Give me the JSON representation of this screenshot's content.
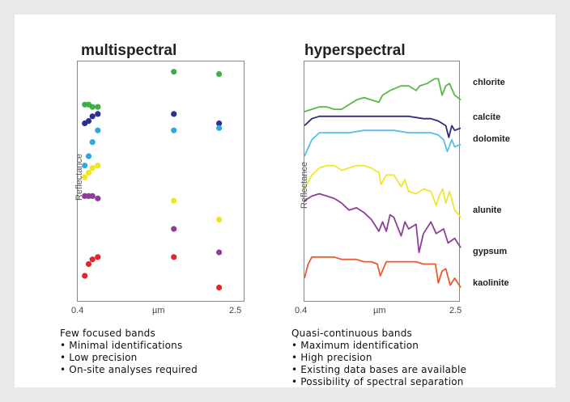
{
  "multispectral": {
    "title": "multispectral",
    "ylabel": "Reflectance",
    "x_tick_left": "0.4",
    "x_tick_mid": "µm",
    "x_tick_right": "2.5",
    "heading": "Few focused bands",
    "bullets": [
      "• Minimal identifications",
      "• Low precision",
      "• On-site analyses required"
    ]
  },
  "hyperspectral": {
    "title": "hyperspectral",
    "ylabel": "Reflectance",
    "x_tick_left": "0.4",
    "x_tick_mid": "µm",
    "x_tick_right": "2.5",
    "heading": "Quasi-continuous bands",
    "bullets": [
      "• Maximum identification",
      "• High precision",
      "• Existing data bases are available",
      "• Possibility of spectral separation"
    ]
  },
  "chart_data": [
    {
      "type": "scatter",
      "title": "multispectral",
      "xlabel": "µm",
      "ylabel": "Reflectance",
      "xlim": [
        0.4,
        2.5
      ],
      "ylim": [
        0,
        1
      ],
      "series": [
        {
          "color": "#3fae49",
          "x": [
            0.45,
            0.5,
            0.55,
            0.62,
            1.61,
            2.2
          ],
          "values": [
            0.83,
            0.83,
            0.82,
            0.82,
            0.97,
            0.96
          ]
        },
        {
          "color": "#2b2f8f",
          "x": [
            0.45,
            0.5,
            0.55,
            0.62,
            1.61,
            2.2
          ],
          "values": [
            0.75,
            0.76,
            0.78,
            0.79,
            0.79,
            0.75
          ]
        },
        {
          "color": "#29abe2",
          "x": [
            0.45,
            0.5,
            0.55,
            0.62,
            1.61,
            2.2
          ],
          "values": [
            0.57,
            0.61,
            0.67,
            0.72,
            0.72,
            0.73
          ]
        },
        {
          "color": "#f2e51a",
          "x": [
            0.45,
            0.5,
            0.55,
            0.62,
            1.61,
            2.2
          ],
          "values": [
            0.52,
            0.54,
            0.56,
            0.57,
            0.42,
            0.34
          ]
        },
        {
          "color": "#8e3c97",
          "x": [
            0.45,
            0.5,
            0.55,
            0.62,
            1.61,
            2.2
          ],
          "values": [
            0.44,
            0.44,
            0.44,
            0.43,
            0.3,
            0.2
          ]
        },
        {
          "color": "#e0262b",
          "x": [
            0.45,
            0.5,
            0.55,
            0.62,
            1.61,
            2.2
          ],
          "values": [
            0.1,
            0.15,
            0.17,
            0.18,
            0.18,
            0.05
          ]
        }
      ],
      "grid": false
    },
    {
      "type": "line",
      "title": "hyperspectral",
      "xlabel": "µm",
      "ylabel": "Reflectance",
      "xlim": [
        0.4,
        2.5
      ],
      "ylim": [
        0,
        1
      ],
      "series": [
        {
          "name": "chlorite",
          "color": "#5bb749",
          "x": [
            0.4,
            0.5,
            0.6,
            0.7,
            0.8,
            0.9,
            1.0,
            1.1,
            1.2,
            1.3,
            1.4,
            1.45,
            1.55,
            1.7,
            1.8,
            1.9,
            1.95,
            2.05,
            2.15,
            2.2,
            2.25,
            2.3,
            2.35,
            2.42,
            2.5
          ],
          "values": [
            0.8,
            0.81,
            0.82,
            0.82,
            0.81,
            0.81,
            0.83,
            0.85,
            0.86,
            0.85,
            0.84,
            0.87,
            0.89,
            0.91,
            0.91,
            0.89,
            0.91,
            0.92,
            0.94,
            0.94,
            0.87,
            0.91,
            0.92,
            0.87,
            0.85
          ]
        },
        {
          "name": "calcite",
          "color": "#2c2e88",
          "x": [
            0.4,
            0.5,
            0.6,
            0.8,
            1.0,
            1.2,
            1.4,
            1.6,
            1.8,
            2.0,
            2.1,
            2.2,
            2.25,
            2.3,
            2.34,
            2.38,
            2.42,
            2.5
          ],
          "values": [
            0.74,
            0.77,
            0.78,
            0.78,
            0.78,
            0.78,
            0.78,
            0.78,
            0.78,
            0.77,
            0.77,
            0.76,
            0.75,
            0.74,
            0.69,
            0.74,
            0.72,
            0.73
          ]
        },
        {
          "name": "dolomite",
          "color": "#59bde8",
          "x": [
            0.4,
            0.5,
            0.6,
            0.8,
            1.0,
            1.2,
            1.4,
            1.6,
            1.8,
            2.0,
            2.1,
            2.2,
            2.27,
            2.32,
            2.38,
            2.42,
            2.5
          ],
          "values": [
            0.61,
            0.68,
            0.71,
            0.71,
            0.71,
            0.72,
            0.72,
            0.72,
            0.71,
            0.71,
            0.71,
            0.7,
            0.68,
            0.63,
            0.68,
            0.65,
            0.66
          ]
        },
        {
          "name": "alunite",
          "color": "#f0e62f",
          "x": [
            0.4,
            0.5,
            0.6,
            0.7,
            0.8,
            0.9,
            1.0,
            1.1,
            1.2,
            1.3,
            1.4,
            1.43,
            1.5,
            1.6,
            1.7,
            1.75,
            1.8,
            1.9,
            2.0,
            2.1,
            2.17,
            2.21,
            2.26,
            2.3,
            2.35,
            2.42,
            2.5
          ],
          "values": [
            0.47,
            0.53,
            0.56,
            0.57,
            0.57,
            0.55,
            0.56,
            0.57,
            0.57,
            0.56,
            0.54,
            0.49,
            0.53,
            0.53,
            0.48,
            0.51,
            0.46,
            0.45,
            0.47,
            0.46,
            0.4,
            0.44,
            0.47,
            0.41,
            0.46,
            0.38,
            0.35
          ]
        },
        {
          "name": "gypsum",
          "color": "#8e3d99",
          "x": [
            0.4,
            0.5,
            0.6,
            0.7,
            0.8,
            0.9,
            1.0,
            1.1,
            1.2,
            1.3,
            1.4,
            1.45,
            1.5,
            1.55,
            1.6,
            1.7,
            1.75,
            1.8,
            1.9,
            1.94,
            2.0,
            2.1,
            2.17,
            2.22,
            2.27,
            2.33,
            2.42,
            2.5
          ],
          "values": [
            0.42,
            0.44,
            0.45,
            0.44,
            0.43,
            0.41,
            0.38,
            0.39,
            0.37,
            0.34,
            0.29,
            0.33,
            0.29,
            0.36,
            0.35,
            0.27,
            0.33,
            0.3,
            0.32,
            0.2,
            0.28,
            0.33,
            0.28,
            0.29,
            0.3,
            0.24,
            0.26,
            0.22
          ]
        },
        {
          "name": "kaolinite",
          "color": "#e85a34",
          "x": [
            0.4,
            0.45,
            0.5,
            0.6,
            0.7,
            0.8,
            0.9,
            1.0,
            1.1,
            1.2,
            1.3,
            1.38,
            1.42,
            1.5,
            1.6,
            1.7,
            1.8,
            1.9,
            2.0,
            2.1,
            2.16,
            2.2,
            2.25,
            2.3,
            2.36,
            2.42,
            2.5
          ],
          "values": [
            0.09,
            0.15,
            0.18,
            0.18,
            0.18,
            0.18,
            0.17,
            0.17,
            0.17,
            0.16,
            0.16,
            0.15,
            0.1,
            0.16,
            0.16,
            0.16,
            0.16,
            0.16,
            0.15,
            0.15,
            0.15,
            0.07,
            0.12,
            0.13,
            0.06,
            0.09,
            0.05
          ]
        }
      ],
      "grid": false
    }
  ]
}
